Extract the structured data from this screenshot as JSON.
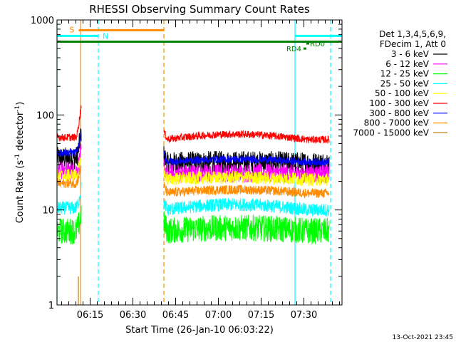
{
  "chart_data": {
    "type": "line",
    "title": "RHESSI Observing Summary Count Rates",
    "xlabel": "Start Time (26-Jan-10 06:03:22)",
    "ylabel": "Count Rate (s⁻¹ detector⁻¹)",
    "ylabel_parts": {
      "main": "Count Rate (s",
      "sup1": "-1",
      "mid": " detector",
      "sup2": "-1",
      "end": ")"
    },
    "yscale": "log",
    "ylim": [
      1,
      1000
    ],
    "xlim_minutes": [
      0,
      100
    ],
    "y_tick_labels": [
      {
        "value": 1,
        "label": "1"
      },
      {
        "value": 10,
        "label": "10"
      },
      {
        "value": 100,
        "label": "100"
      },
      {
        "value": 1000,
        "label": "1000"
      }
    ],
    "x_tick_labels": [
      {
        "minute": 11.63,
        "label": "06:15"
      },
      {
        "minute": 26.63,
        "label": "06:30"
      },
      {
        "minute": 41.63,
        "label": "06:45"
      },
      {
        "minute": 56.63,
        "label": "07:00"
      },
      {
        "minute": 71.63,
        "label": "07:15"
      },
      {
        "minute": 86.63,
        "label": "07:30"
      }
    ],
    "legend": {
      "header": [
        "Det 1,3,4,5,6,9,",
        "FDecim 1, Att 0"
      ],
      "placement": "right",
      "entries": [
        {
          "label": "3 - 6 keV",
          "color": "#000000"
        },
        {
          "label": "6 - 12 keV",
          "color": "#ff00ff"
        },
        {
          "label": "12 - 25 keV",
          "color": "#00ff00"
        },
        {
          "label": "25 - 50 keV",
          "color": "#00ffff"
        },
        {
          "label": "50 - 100 keV",
          "color": "#ffff00"
        },
        {
          "label": "100 - 300 keV",
          "color": "#ff0000"
        },
        {
          "label": "300 - 800 keV",
          "color": "#0000ff"
        },
        {
          "label": "800 - 7000 keV",
          "color": "#ff8c00"
        },
        {
          "label": "7000 - 15000 keV",
          "color": "#b8860b"
        }
      ]
    },
    "segments": [
      {
        "start": 0,
        "end": 8.5
      },
      {
        "start": 37.5,
        "end": 95.5
      }
    ],
    "series": [
      {
        "name": "3 - 6 keV",
        "color": "#000000",
        "level": [
          35,
          31
        ],
        "noise": 0.12,
        "bump": 0.03,
        "rise": 1.9
      },
      {
        "name": "6 - 12 keV",
        "color": "#ff00ff",
        "level": [
          26,
          24
        ],
        "noise": 0.1,
        "bump": 0.02,
        "rise": 1.6
      },
      {
        "name": "12 - 25 keV",
        "color": "#00ff00",
        "level": [
          6,
          6
        ],
        "noise": 0.14,
        "bump": 0.08,
        "rise": 1.5
      },
      {
        "name": "25 - 50 keV",
        "color": "#00ffff",
        "level": [
          10.5,
          10
        ],
        "noise": 0.07,
        "bump": 0.14,
        "rise": 1.6
      },
      {
        "name": "50 - 100 keV",
        "color": "#ffff00",
        "level": [
          23,
          21
        ],
        "noise": 0.07,
        "bump": 0.05,
        "rise": 1.6
      },
      {
        "name": "100 - 300 keV",
        "color": "#ff0000",
        "level": [
          58,
          55
        ],
        "noise": 0.04,
        "bump": 0.14,
        "rise": 2.2
      },
      {
        "name": "300 - 800 keV",
        "color": "#0000ff",
        "level": [
          40,
          32
        ],
        "noise": 0.04,
        "bump": 0.07,
        "rise": 1.6
      },
      {
        "name": "800 - 7000 keV",
        "color": "#ff8c00",
        "level": [
          19,
          15
        ],
        "noise": 0.05,
        "bump": 0.09,
        "rise": 1.6
      },
      {
        "name": "7000 - 15000 keV",
        "color": "#b8860b",
        "level": [
          1,
          1
        ],
        "noise": 0,
        "bump": 0,
        "rise": 1
      }
    ],
    "flags": [
      {
        "label": "S",
        "color": "#ff8c00",
        "level": 780,
        "start": 7.6,
        "end": 37.5
      },
      {
        "label": "N",
        "color": "#00ffff",
        "level": 680,
        "start": 0,
        "end": 14.5
      },
      {
        "label": "",
        "color": "#00ffff",
        "level": 680,
        "start": 83.5,
        "end": 100
      },
      {
        "label": "",
        "color": "#008000",
        "level": 590,
        "start": 0,
        "end": 100
      },
      {
        "label": "RD0",
        "color": "#008000",
        "level": 565,
        "start": 87.5,
        "end": 88.5
      },
      {
        "label": "RD4",
        "color": "#008000",
        "level": 500,
        "start": 86.5,
        "end": 87.5
      }
    ],
    "vlines": [
      {
        "minute": 0,
        "color": "#00ffff",
        "style": "solid"
      },
      {
        "minute": 8.3,
        "color": "#ff8c00",
        "style": "solid"
      },
      {
        "minute": 14.5,
        "color": "#00ffff",
        "style": "dashed"
      },
      {
        "minute": 37.5,
        "color": "#ff8c00",
        "style": "dashed"
      },
      {
        "minute": 83.5,
        "color": "#00ffff",
        "style": "solid"
      },
      {
        "minute": 96.0,
        "color": "#00ffff",
        "style": "dashed"
      }
    ],
    "footer_date": "13-Oct-2021 23:45"
  }
}
